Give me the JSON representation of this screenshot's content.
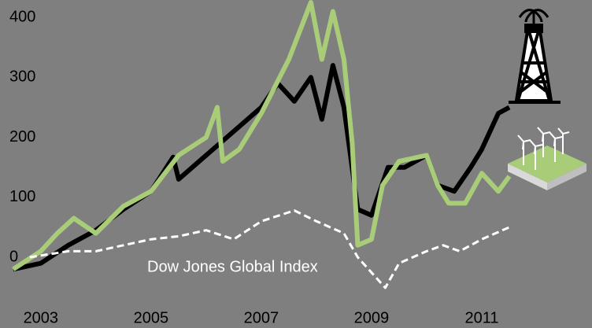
{
  "chart_data": {
    "type": "line",
    "xlim": [
      2002.26,
      2013
    ],
    "xticks": [
      2003,
      2005,
      2007,
      2009,
      2011
    ],
    "ylim": [
      -118,
      429
    ],
    "yticks": [
      0,
      100,
      200,
      300,
      400
    ],
    "grid": false,
    "series": [
      {
        "color": "#000000",
        "dash": false,
        "x": [
          2002.5,
          2003,
          2003.5,
          2004,
          2004.5,
          2005,
          2005.4,
          2005.5,
          2006,
          2006.5,
          2007,
          2007.3,
          2007.6,
          2007.9,
          2008.1,
          2008.3,
          2008.5,
          2008.75,
          2009,
          2009.3,
          2009.6,
          2010,
          2010.2,
          2010.5,
          2010.8,
          2011,
          2011.3,
          2011.5
        ],
        "values": [
          -20,
          -10,
          20,
          45,
          80,
          110,
          167,
          130,
          170,
          210,
          250,
          290,
          260,
          300,
          230,
          320,
          250,
          80,
          70,
          150,
          150,
          170,
          120,
          110,
          150,
          180,
          240,
          250
        ]
      },
      {
        "color": "#a9cc79",
        "dash": false,
        "x": [
          2002.5,
          2003,
          2003.3,
          2003.6,
          2004,
          2004.5,
          2005,
          2005.5,
          2006,
          2006.2,
          2006.3,
          2006.6,
          2007,
          2007.5,
          2007.9,
          2008.1,
          2008.3,
          2008.5,
          2008.65,
          2008.75,
          2009,
          2009.2,
          2009.5,
          2010,
          2010.2,
          2010.4,
          2010.7,
          2011,
          2011.3,
          2011.5
        ],
        "values": [
          -20,
          10,
          40,
          65,
          40,
          85,
          110,
          170,
          200,
          250,
          160,
          180,
          240,
          330,
          425,
          330,
          410,
          330,
          190,
          20,
          30,
          120,
          160,
          170,
          120,
          90,
          90,
          140,
          110,
          135
        ]
      },
      {
        "name": "Dow Jones Global Index",
        "color": "#ffffff",
        "dash": true,
        "x": [
          2002.8,
          2003.5,
          2004,
          2004.5,
          2005,
          2005.5,
          2006,
          2006.5,
          2007,
          2007.6,
          2008,
          2008.5,
          2008.75,
          2009.25,
          2009.5,
          2010,
          2010.3,
          2010.6,
          2011,
          2011.5
        ],
        "values": [
          0,
          10,
          10,
          20,
          30,
          35,
          45,
          30,
          60,
          78,
          60,
          40,
          0,
          -51,
          -10,
          10,
          20,
          10,
          30,
          50
        ]
      }
    ]
  }
}
